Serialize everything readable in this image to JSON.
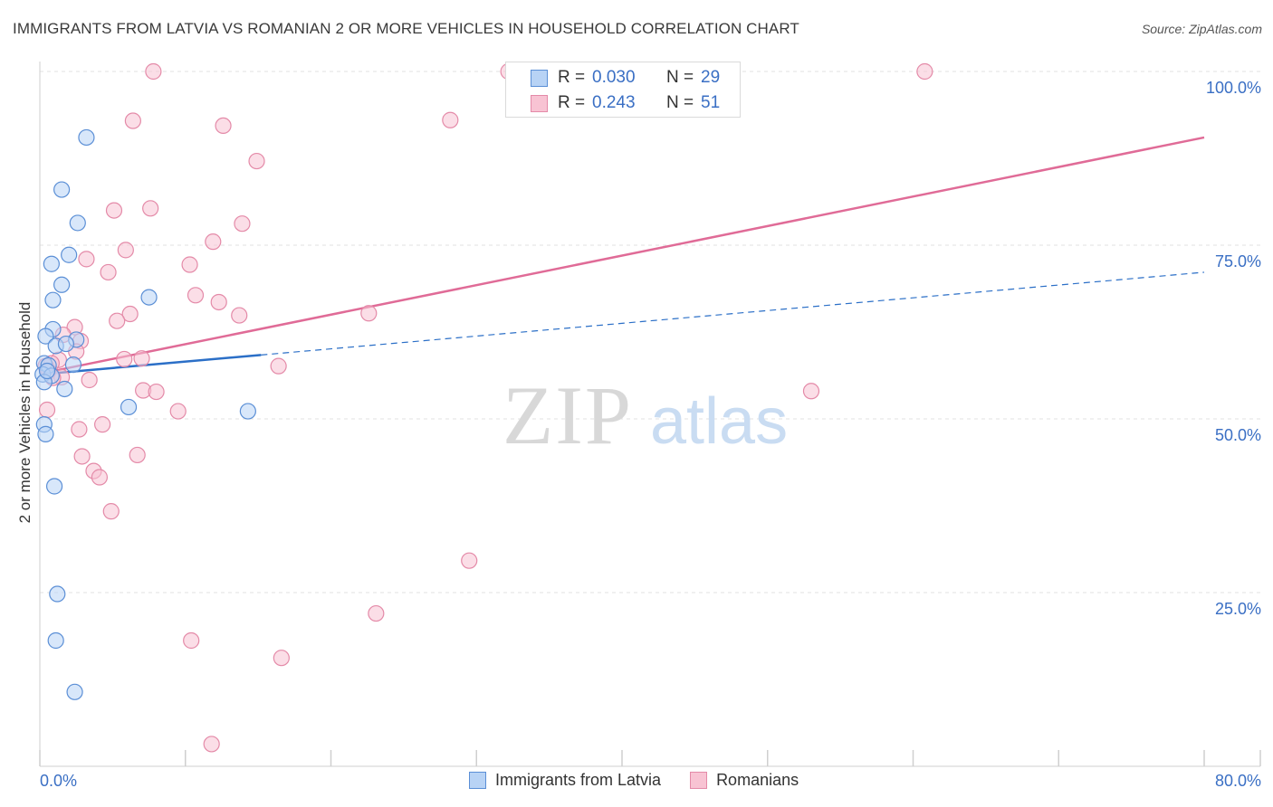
{
  "header": {
    "title": "IMMIGRANTS FROM LATVIA VS ROMANIAN 2 OR MORE VEHICLES IN HOUSEHOLD CORRELATION CHART",
    "source": "Source: ZipAtlas.com"
  },
  "watermark": {
    "zip": "ZIP",
    "atlas": "atlas"
  },
  "colors": {
    "latvia_fill": "#b8d3f5",
    "latvia_stroke": "#5b8fd6",
    "latvia_line": "#2b6fc7",
    "romanian_fill": "#f8c3d3",
    "romanian_stroke": "#e48aa8",
    "romanian_line": "#e06b97",
    "axis_label": "#3a6fc4",
    "grid": "#e2e2e2"
  },
  "legend": {
    "rows": [
      {
        "r_label": "R =",
        "r_value": "0.030",
        "n_label": "N =",
        "n_value": "29"
      },
      {
        "r_label": "R =",
        "r_value": "0.243",
        "n_label": "N =",
        "n_value": "51"
      }
    ]
  },
  "bottom_legend": {
    "latvia": "Immigrants from Latvia",
    "romanians": "Romanians"
  },
  "chart_data": {
    "type": "scatter",
    "title": "IMMIGRANTS FROM LATVIA VS ROMANIAN 2 OR MORE VEHICLES IN HOUSEHOLD CORRELATION CHART",
    "xlabel": "",
    "ylabel": "2 or more Vehicles in Household",
    "xlim": [
      0,
      80
    ],
    "ylim": [
      0,
      100
    ],
    "x_tick_labels": [
      "0.0%",
      "80.0%"
    ],
    "y_ticks": [
      25,
      50,
      75,
      100
    ],
    "y_tick_labels": [
      "25.0%",
      "50.0%",
      "75.0%",
      "100.0%"
    ],
    "grid": true,
    "series": [
      {
        "name": "Immigrants from Latvia",
        "r": 0.03,
        "n": 29,
        "points": [
          [
            3.2,
            90.5
          ],
          [
            1.5,
            83.0
          ],
          [
            2.6,
            78.2
          ],
          [
            2.0,
            73.6
          ],
          [
            0.8,
            72.3
          ],
          [
            1.5,
            69.3
          ],
          [
            0.9,
            67.1
          ],
          [
            7.5,
            67.5
          ],
          [
            0.9,
            62.9
          ],
          [
            0.4,
            61.9
          ],
          [
            2.5,
            61.4
          ],
          [
            1.1,
            60.5
          ],
          [
            1.8,
            60.8
          ],
          [
            0.3,
            58.0
          ],
          [
            0.6,
            57.7
          ],
          [
            2.3,
            57.8
          ],
          [
            0.2,
            56.4
          ],
          [
            0.8,
            56.2
          ],
          [
            0.3,
            55.3
          ],
          [
            1.7,
            54.3
          ],
          [
            6.1,
            51.7
          ],
          [
            14.3,
            51.1
          ],
          [
            0.3,
            49.2
          ],
          [
            0.4,
            47.8
          ],
          [
            1.0,
            40.3
          ],
          [
            1.2,
            24.8
          ],
          [
            1.1,
            18.1
          ],
          [
            2.4,
            10.7
          ],
          [
            0.5,
            56.9
          ]
        ],
        "trend_solid": [
          [
            0,
            56.4
          ],
          [
            15.2,
            59.2
          ]
        ],
        "trend_dashed": [
          [
            15.2,
            59.2
          ],
          [
            80,
            71.1
          ]
        ]
      },
      {
        "name": "Romanians",
        "r": 0.243,
        "n": 51,
        "points": [
          [
            7.8,
            100.0
          ],
          [
            32.2,
            100.0
          ],
          [
            60.8,
            100.0
          ],
          [
            6.4,
            92.9
          ],
          [
            12.6,
            92.2
          ],
          [
            28.2,
            93.0
          ],
          [
            14.9,
            87.1
          ],
          [
            5.1,
            80.0
          ],
          [
            7.6,
            80.3
          ],
          [
            13.9,
            78.1
          ],
          [
            5.9,
            74.3
          ],
          [
            11.9,
            75.5
          ],
          [
            3.2,
            73.0
          ],
          [
            10.3,
            72.2
          ],
          [
            4.7,
            71.1
          ],
          [
            10.7,
            67.8
          ],
          [
            12.3,
            66.8
          ],
          [
            6.2,
            65.1
          ],
          [
            13.7,
            64.9
          ],
          [
            22.6,
            65.2
          ],
          [
            5.3,
            64.1
          ],
          [
            2.4,
            63.2
          ],
          [
            1.6,
            62.1
          ],
          [
            2.8,
            61.2
          ],
          [
            2.5,
            59.7
          ],
          [
            7.0,
            58.7
          ],
          [
            5.8,
            58.6
          ],
          [
            1.3,
            58.5
          ],
          [
            0.8,
            58.0
          ],
          [
            0.4,
            57.6
          ],
          [
            16.4,
            57.6
          ],
          [
            0.6,
            56.8
          ],
          [
            1.5,
            56.0
          ],
          [
            0.9,
            55.9
          ],
          [
            3.4,
            55.6
          ],
          [
            7.1,
            54.1
          ],
          [
            8.0,
            53.9
          ],
          [
            53.0,
            54.0
          ],
          [
            0.5,
            51.3
          ],
          [
            9.5,
            51.1
          ],
          [
            4.3,
            49.2
          ],
          [
            2.7,
            48.5
          ],
          [
            6.7,
            44.8
          ],
          [
            2.9,
            44.6
          ],
          [
            3.7,
            42.5
          ],
          [
            4.1,
            41.6
          ],
          [
            4.9,
            36.7
          ],
          [
            29.5,
            29.6
          ],
          [
            23.1,
            22.0
          ],
          [
            10.4,
            18.1
          ],
          [
            16.6,
            15.6
          ]
        ],
        "trend_solid": [
          [
            0,
            56.5
          ],
          [
            80,
            90.5
          ]
        ]
      }
    ],
    "extra_points_romanians": [
      [
        11.8,
        3.2
      ]
    ]
  }
}
